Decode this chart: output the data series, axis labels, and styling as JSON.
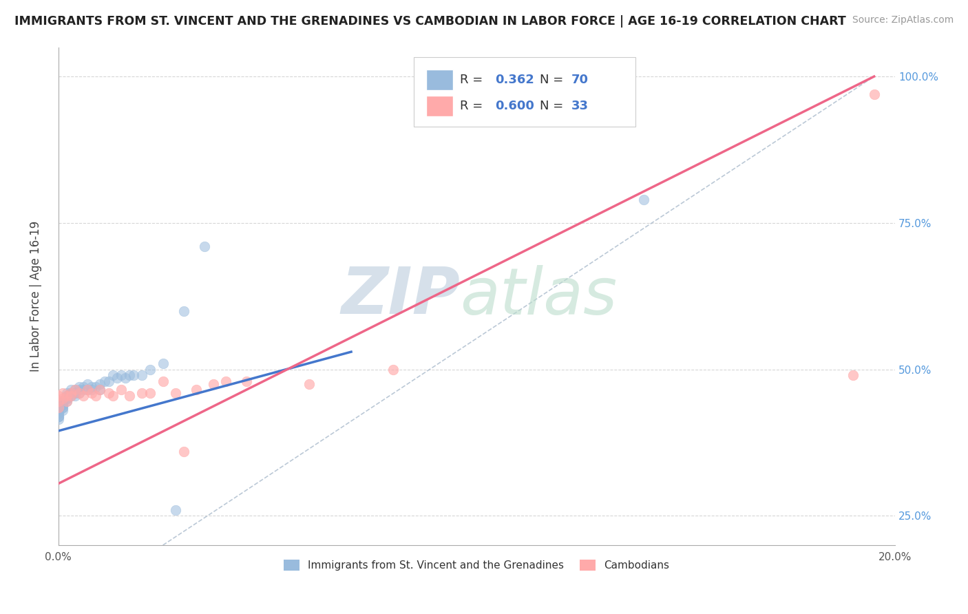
{
  "title": "IMMIGRANTS FROM ST. VINCENT AND THE GRENADINES VS CAMBODIAN IN LABOR FORCE | AGE 16-19 CORRELATION CHART",
  "source": "Source: ZipAtlas.com",
  "ylabel": "In Labor Force | Age 16-19",
  "x_min": 0.0,
  "x_max": 0.2,
  "y_min": 0.2,
  "y_max": 1.05,
  "legend_label1": "Immigrants from St. Vincent and the Grenadines",
  "legend_label2": "Cambodians",
  "r1": 0.362,
  "n1": 70,
  "r2": 0.6,
  "n2": 33,
  "color_blue": "#99BBDD",
  "color_pink": "#FFAAAA",
  "color_blue_line": "#4477CC",
  "color_pink_line": "#EE6688",
  "color_ref_line": "#AABBCC",
  "watermark_zip": "ZIP",
  "watermark_atlas": "atlas",
  "watermark_color_zip": "#BBCCDD",
  "watermark_color_atlas": "#CCDDBB",
  "blue_scatter_x": [
    0.0,
    0.0,
    0.0,
    0.0,
    0.0,
    0.0,
    0.0,
    0.0,
    0.0,
    0.0,
    0.0,
    0.0,
    0.0,
    0.0,
    0.0,
    0.0,
    0.0,
    0.0,
    0.0,
    0.0,
    0.001,
    0.001,
    0.001,
    0.001,
    0.001,
    0.001,
    0.001,
    0.001,
    0.001,
    0.001,
    0.002,
    0.002,
    0.002,
    0.002,
    0.002,
    0.002,
    0.003,
    0.003,
    0.003,
    0.003,
    0.004,
    0.004,
    0.004,
    0.005,
    0.005,
    0.005,
    0.006,
    0.006,
    0.007,
    0.007,
    0.008,
    0.008,
    0.009,
    0.01,
    0.01,
    0.011,
    0.012,
    0.013,
    0.014,
    0.015,
    0.016,
    0.017,
    0.018,
    0.02,
    0.022,
    0.025,
    0.028,
    0.03,
    0.035,
    0.14
  ],
  "blue_scatter_y": [
    0.435,
    0.44,
    0.445,
    0.43,
    0.425,
    0.435,
    0.44,
    0.445,
    0.43,
    0.435,
    0.42,
    0.425,
    0.43,
    0.435,
    0.425,
    0.42,
    0.415,
    0.425,
    0.42,
    0.43,
    0.44,
    0.445,
    0.44,
    0.435,
    0.445,
    0.44,
    0.445,
    0.44,
    0.435,
    0.43,
    0.45,
    0.455,
    0.46,
    0.445,
    0.455,
    0.45,
    0.46,
    0.465,
    0.455,
    0.46,
    0.465,
    0.46,
    0.455,
    0.465,
    0.47,
    0.46,
    0.47,
    0.465,
    0.475,
    0.465,
    0.47,
    0.465,
    0.47,
    0.475,
    0.465,
    0.48,
    0.48,
    0.49,
    0.485,
    0.49,
    0.485,
    0.49,
    0.49,
    0.49,
    0.5,
    0.51,
    0.26,
    0.6,
    0.71,
    0.79
  ],
  "pink_scatter_x": [
    0.0,
    0.0,
    0.0,
    0.001,
    0.001,
    0.002,
    0.002,
    0.003,
    0.003,
    0.004,
    0.005,
    0.006,
    0.007,
    0.008,
    0.009,
    0.01,
    0.012,
    0.013,
    0.015,
    0.017,
    0.02,
    0.022,
    0.025,
    0.028,
    0.03,
    0.033,
    0.037,
    0.04,
    0.045,
    0.06,
    0.08,
    0.19,
    0.195
  ],
  "pink_scatter_y": [
    0.435,
    0.445,
    0.455,
    0.46,
    0.45,
    0.455,
    0.445,
    0.46,
    0.455,
    0.465,
    0.46,
    0.455,
    0.465,
    0.46,
    0.455,
    0.465,
    0.46,
    0.455,
    0.465,
    0.455,
    0.46,
    0.46,
    0.48,
    0.46,
    0.36,
    0.465,
    0.475,
    0.48,
    0.48,
    0.475,
    0.5,
    0.49,
    0.97
  ],
  "blue_line_x": [
    0.0,
    0.07
  ],
  "blue_line_y": [
    0.395,
    0.53
  ],
  "pink_line_x": [
    0.0,
    0.195
  ],
  "pink_line_y": [
    0.305,
    1.0
  ],
  "ref_line_x": [
    0.025,
    0.195
  ],
  "ref_line_y": [
    0.2,
    1.0
  ]
}
